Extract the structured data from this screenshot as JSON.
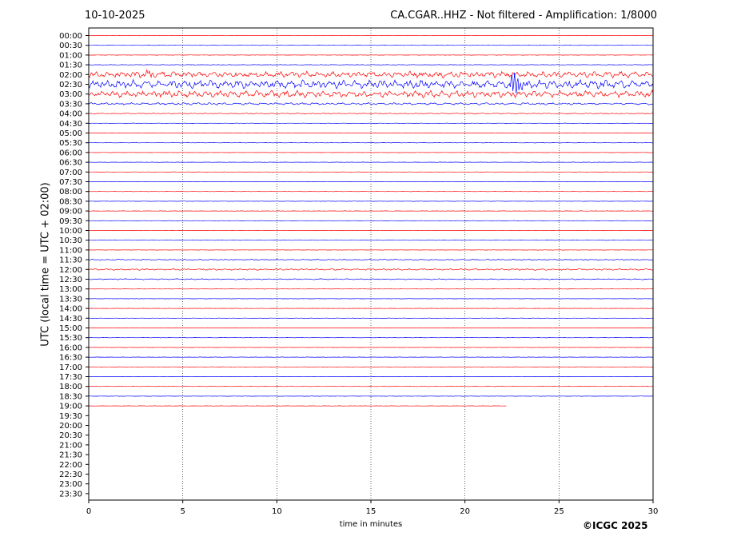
{
  "header": {
    "date": "10-10-2025",
    "title": "CA.CGAR..HHZ - Not filtered - Amplification: 1/8000"
  },
  "footer": {
    "copyright": "©ICGC 2025"
  },
  "chart_data": {
    "type": "line",
    "title": "CA.CGAR..HHZ - Not filtered - Amplification: 1/8000",
    "xlabel": "time in minutes",
    "ylabel": "UTC (local time = UTC + 02:00)",
    "xlim": [
      0,
      30
    ],
    "xticks": [
      0,
      5,
      10,
      15,
      20,
      25,
      30
    ],
    "yticks": [
      "00:00",
      "00:30",
      "01:00",
      "01:30",
      "02:00",
      "02:30",
      "03:00",
      "03:30",
      "04:00",
      "04:30",
      "05:00",
      "05:30",
      "06:00",
      "06:30",
      "07:00",
      "07:30",
      "08:00",
      "08:30",
      "09:00",
      "09:30",
      "10:00",
      "10:30",
      "11:00",
      "11:30",
      "12:00",
      "12:30",
      "13:00",
      "13:30",
      "14:00",
      "14:30",
      "15:00",
      "15:30",
      "16:00",
      "16:30",
      "17:00",
      "17:30",
      "18:00",
      "18:30",
      "19:00",
      "19:30",
      "20:00",
      "20:30",
      "21:00",
      "21:30",
      "22:00",
      "22:30",
      "23:00",
      "23:30"
    ],
    "grid": "vertical dotted",
    "colors": {
      "odd_hour_trace": "#ff0000",
      "even_hour_trace": "#0000ff"
    },
    "traces_recorded_until": "19:00 + 22.2 min",
    "trace_activity": {
      "01:30": 0.4,
      "02:00": 4.5,
      "02:30": 6.0,
      "03:00": 5.0,
      "03:30": 1.6,
      "04:00": 0.6,
      "11:30": 0.8,
      "12:00": 1.2,
      "12:30": 0.8
    },
    "events": [
      {
        "trace": "02:00",
        "minute": 3.2,
        "amplitude": 6
      },
      {
        "trace": "02:30",
        "minute": 22.6,
        "amplitude": 30
      }
    ]
  }
}
